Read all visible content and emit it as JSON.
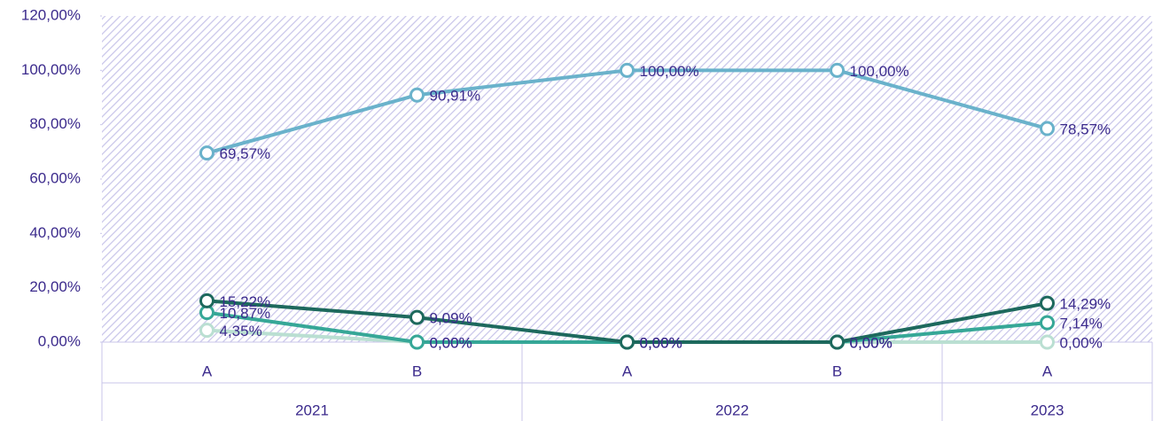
{
  "chart_data": {
    "type": "line",
    "categories": [
      "A",
      "B",
      "A",
      "B",
      "A"
    ],
    "groups": [
      {
        "label": "2021",
        "span": 2
      },
      {
        "label": "2022",
        "span": 2
      },
      {
        "label": "2023",
        "span": 1
      }
    ],
    "ylim": [
      0,
      120
    ],
    "yticks": [
      {
        "value": 0,
        "label": "0,00%"
      },
      {
        "value": 20,
        "label": "20,00%"
      },
      {
        "value": 40,
        "label": "40,00%"
      },
      {
        "value": 60,
        "label": "60,00%"
      },
      {
        "value": 80,
        "label": "80,00%"
      },
      {
        "value": 100,
        "label": "100,00%"
      },
      {
        "value": 120,
        "label": "120,00%"
      }
    ],
    "series": [
      {
        "color": "#6ab2cb",
        "values": [
          69.57,
          90.91,
          100,
          100,
          78.57
        ],
        "value_labels": [
          "69,57%",
          "90,91%",
          "100,00%",
          "100,00%",
          "78,57%"
        ]
      },
      {
        "color": "#badfd2",
        "values": [
          4.35,
          0,
          0,
          0,
          0
        ],
        "value_labels": [
          "4,35%",
          "0,00%",
          "0,00%",
          "0,00%",
          "0,00%"
        ]
      },
      {
        "color": "#36a797",
        "values": [
          10.87,
          0,
          0,
          0,
          7.14
        ],
        "value_labels": [
          "10,87%",
          "0,00%",
          "0,00%",
          "0,00%",
          "7,14%"
        ]
      },
      {
        "color": "#1d695d",
        "values": [
          15.22,
          9.09,
          0,
          0,
          14.29
        ],
        "value_labels": [
          "15,22%",
          "9,09%",
          "0,00%",
          "0,00%",
          "14,29%"
        ]
      }
    ]
  }
}
